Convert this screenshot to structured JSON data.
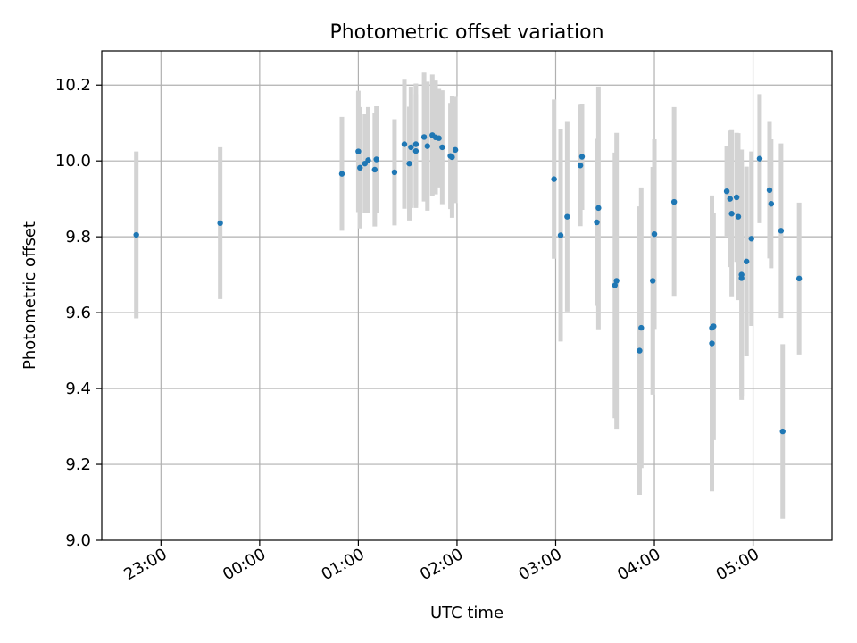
{
  "chart_data": {
    "type": "scatter",
    "title": "Photometric offset variation",
    "xlabel": "UTC time",
    "ylabel": "Photometric offset",
    "x_axis": "time",
    "xlim": [
      "22:24",
      "05:48"
    ],
    "ylim": [
      9.0,
      10.29
    ],
    "grid": true,
    "x_ticks": [
      "23:00",
      "00:00",
      "01:00",
      "02:00",
      "03:00",
      "04:00",
      "05:00"
    ],
    "y_ticks": [
      "9.0",
      "9.2",
      "9.4",
      "9.6",
      "9.8",
      "10.0",
      "10.2"
    ],
    "colors": {
      "point": "#1f77b4",
      "errorbar": "#d3d3d3",
      "grid": "#b0b0b0"
    },
    "series": [
      {
        "x": [
          "22:45",
          "23:36",
          "00:50",
          "01:00",
          "01:01",
          "01:04",
          "01:06",
          "01:10",
          "01:11",
          "01:22",
          "01:28",
          "01:31",
          "01:32",
          "01:35",
          "01:35",
          "01:40",
          "01:42",
          "01:45",
          "01:47",
          "01:49",
          "01:51",
          "01:56",
          "01:57",
          "01:59",
          "02:59",
          "03:03",
          "03:07",
          "03:15",
          "03:16",
          "03:25",
          "03:26",
          "03:36",
          "03:37",
          "03:51",
          "03:52",
          "03:59",
          "04:00",
          "04:12",
          "04:35",
          "04:35",
          "04:36",
          "04:44",
          "04:46",
          "04:47",
          "04:50",
          "04:51",
          "04:53",
          "04:53",
          "04:56",
          "04:59",
          "05:04",
          "05:10",
          "05:11",
          "05:17",
          "05:18",
          "05:28"
        ],
        "y": [
          9.805,
          9.836,
          9.966,
          10.025,
          9.982,
          9.993,
          10.002,
          9.977,
          10.004,
          9.97,
          10.044,
          9.993,
          10.036,
          10.026,
          10.044,
          10.063,
          10.039,
          10.068,
          10.062,
          10.06,
          10.036,
          10.013,
          10.01,
          10.029,
          9.952,
          9.804,
          9.853,
          9.988,
          10.011,
          9.838,
          9.876,
          9.672,
          9.684,
          9.5,
          9.56,
          9.684,
          9.807,
          9.892,
          9.519,
          9.56,
          9.564,
          9.92,
          9.9,
          9.861,
          9.904,
          9.853,
          9.7,
          9.691,
          9.735,
          9.795,
          10.006,
          9.923,
          9.887,
          9.816,
          9.287,
          9.69
        ],
        "err": [
          0.22,
          0.2,
          0.15,
          0.16,
          0.16,
          0.13,
          0.14,
          0.15,
          0.14,
          0.14,
          0.17,
          0.15,
          0.16,
          0.15,
          0.16,
          0.17,
          0.17,
          0.16,
          0.15,
          0.13,
          0.15,
          0.14,
          0.16,
          0.14,
          0.21,
          0.28,
          0.25,
          0.16,
          0.14,
          0.22,
          0.32,
          0.35,
          0.39,
          0.38,
          0.37,
          0.3,
          0.25,
          0.25,
          0.39,
          0.28,
          0.3,
          0.12,
          0.18,
          0.22,
          0.17,
          0.22,
          0.33,
          0.31,
          0.25,
          0.23,
          0.17,
          0.18,
          0.17,
          0.23,
          0.23,
          0.2
        ]
      }
    ]
  }
}
